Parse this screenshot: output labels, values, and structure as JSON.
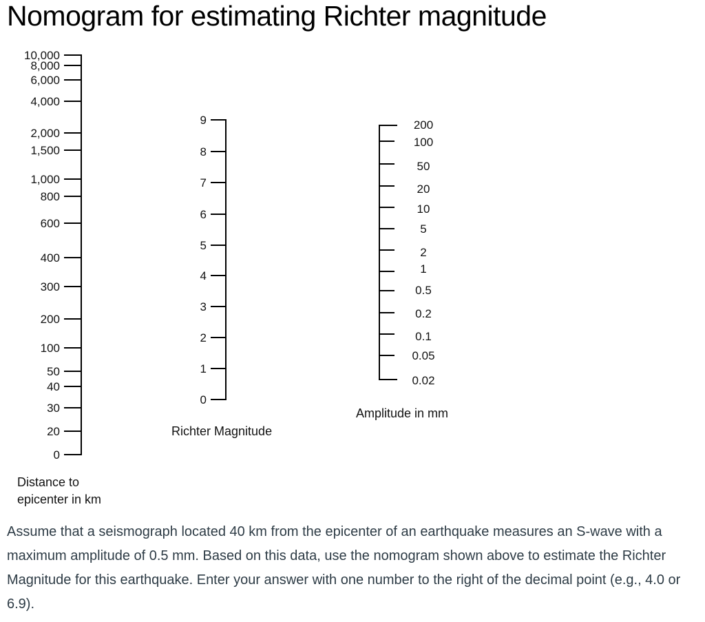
{
  "title": "Nomogram for estimating Richter magnitude",
  "scales": {
    "distance": {
      "label_lines": [
        "Distance to",
        "epicenter in km"
      ],
      "ticks": [
        "10,000",
        "8,000",
        "6,000",
        "4,000",
        "2,000",
        "1,500",
        "1,000",
        "800",
        "600",
        "400",
        "300",
        "200",
        "100",
        "50",
        "40",
        "30",
        "20",
        "0"
      ]
    },
    "magnitude": {
      "label": "Richter Magnitude",
      "ticks": [
        "9",
        "8",
        "7",
        "6",
        "5",
        "4",
        "3",
        "2",
        "1",
        "0"
      ]
    },
    "amplitude": {
      "label": "Amplitude in mm",
      "ticks": [
        "200",
        "100",
        "50",
        "20",
        "10",
        "5",
        "2",
        "1",
        "0.5",
        "0.2",
        "0.1",
        "0.05",
        "0.02"
      ]
    }
  },
  "question": "Assume that a seismograph located 40 km from the epicenter of an earthquake measures an S-wave with a maximum amplitude of 0.5 mm. Based on this data, use the nomogram shown above to estimate the Richter Magnitude for this earthquake. Enter your answer with one number to the right of the decimal point (e.g., 4.0 or 6.9)."
}
